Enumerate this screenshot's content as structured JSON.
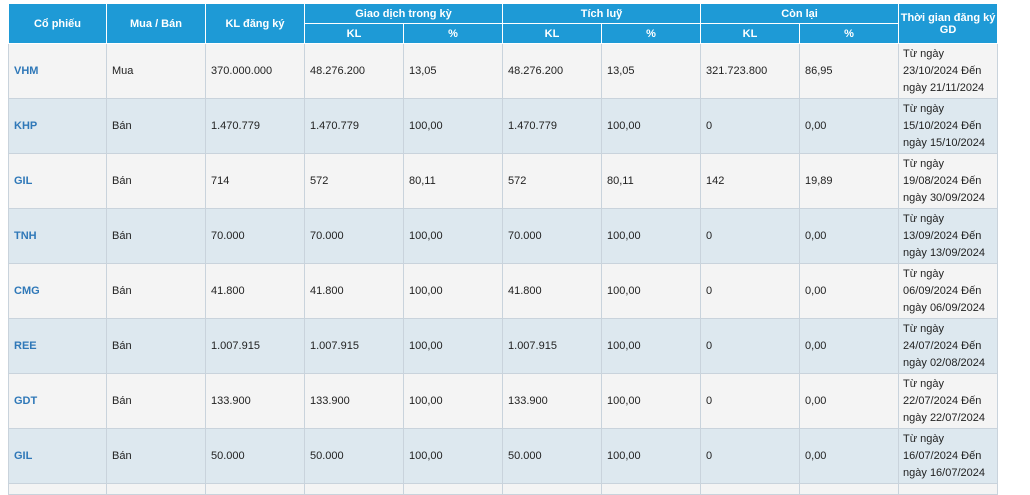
{
  "headers": {
    "stock": "Cổ phiếu",
    "side": "Mua / Bán",
    "registered": "KL đăng ký",
    "period_group": "Giao dịch trong kỳ",
    "cumulative_group": "Tích luỹ",
    "remaining_group": "Còn lại",
    "time": "Thời gian đăng ký GD",
    "kl": "KL",
    "pct": "%"
  },
  "rows": [
    {
      "ticker": "VHM",
      "side": "Mua",
      "registered": "370.000.000",
      "period_kl": "48.276.200",
      "period_pct": "13,05",
      "cum_kl": "48.276.200",
      "cum_pct": "13,05",
      "rem_kl": "321.723.800",
      "rem_pct": "86,95",
      "date_l1": "Từ ngày",
      "date_l2": "23/10/2024 Đến",
      "date_l3": "ngày 21/11/2024"
    },
    {
      "ticker": "KHP",
      "side": "Bán",
      "registered": "1.470.779",
      "period_kl": "1.470.779",
      "period_pct": "100,00",
      "cum_kl": "1.470.779",
      "cum_pct": "100,00",
      "rem_kl": "0",
      "rem_pct": "0,00",
      "date_l1": "Từ ngày",
      "date_l2": "15/10/2024 Đến",
      "date_l3": "ngày 15/10/2024"
    },
    {
      "ticker": "GIL",
      "side": "Bán",
      "registered": "714",
      "period_kl": "572",
      "period_pct": "80,11",
      "cum_kl": "572",
      "cum_pct": "80,11",
      "rem_kl": "142",
      "rem_pct": "19,89",
      "date_l1": "Từ ngày",
      "date_l2": "19/08/2024 Đến",
      "date_l3": "ngày 30/09/2024"
    },
    {
      "ticker": "TNH",
      "side": "Bán",
      "registered": "70.000",
      "period_kl": "70.000",
      "period_pct": "100,00",
      "cum_kl": "70.000",
      "cum_pct": "100,00",
      "rem_kl": "0",
      "rem_pct": "0,00",
      "date_l1": "Từ ngày",
      "date_l2": "13/09/2024 Đến",
      "date_l3": "ngày 13/09/2024"
    },
    {
      "ticker": "CMG",
      "side": "Bán",
      "registered": "41.800",
      "period_kl": "41.800",
      "period_pct": "100,00",
      "cum_kl": "41.800",
      "cum_pct": "100,00",
      "rem_kl": "0",
      "rem_pct": "0,00",
      "date_l1": "Từ ngày",
      "date_l2": "06/09/2024 Đến",
      "date_l3": "ngày 06/09/2024"
    },
    {
      "ticker": "REE",
      "side": "Bán",
      "registered": "1.007.915",
      "period_kl": "1.007.915",
      "period_pct": "100,00",
      "cum_kl": "1.007.915",
      "cum_pct": "100,00",
      "rem_kl": "0",
      "rem_pct": "0,00",
      "date_l1": "Từ ngày",
      "date_l2": "24/07/2024 Đến",
      "date_l3": "ngày 02/08/2024"
    },
    {
      "ticker": "GDT",
      "side": "Bán",
      "registered": "133.900",
      "period_kl": "133.900",
      "period_pct": "100,00",
      "cum_kl": "133.900",
      "cum_pct": "100,00",
      "rem_kl": "0",
      "rem_pct": "0,00",
      "date_l1": "Từ ngày",
      "date_l2": "22/07/2024 Đến",
      "date_l3": "ngày 22/07/2024"
    },
    {
      "ticker": "GIL",
      "side": "Bán",
      "registered": "50.000",
      "period_kl": "50.000",
      "period_pct": "100,00",
      "cum_kl": "50.000",
      "cum_pct": "100,00",
      "rem_kl": "0",
      "rem_pct": "0,00",
      "date_l1": "Từ ngày",
      "date_l2": "16/07/2024 Đến",
      "date_l3": "ngày 16/07/2024"
    }
  ]
}
